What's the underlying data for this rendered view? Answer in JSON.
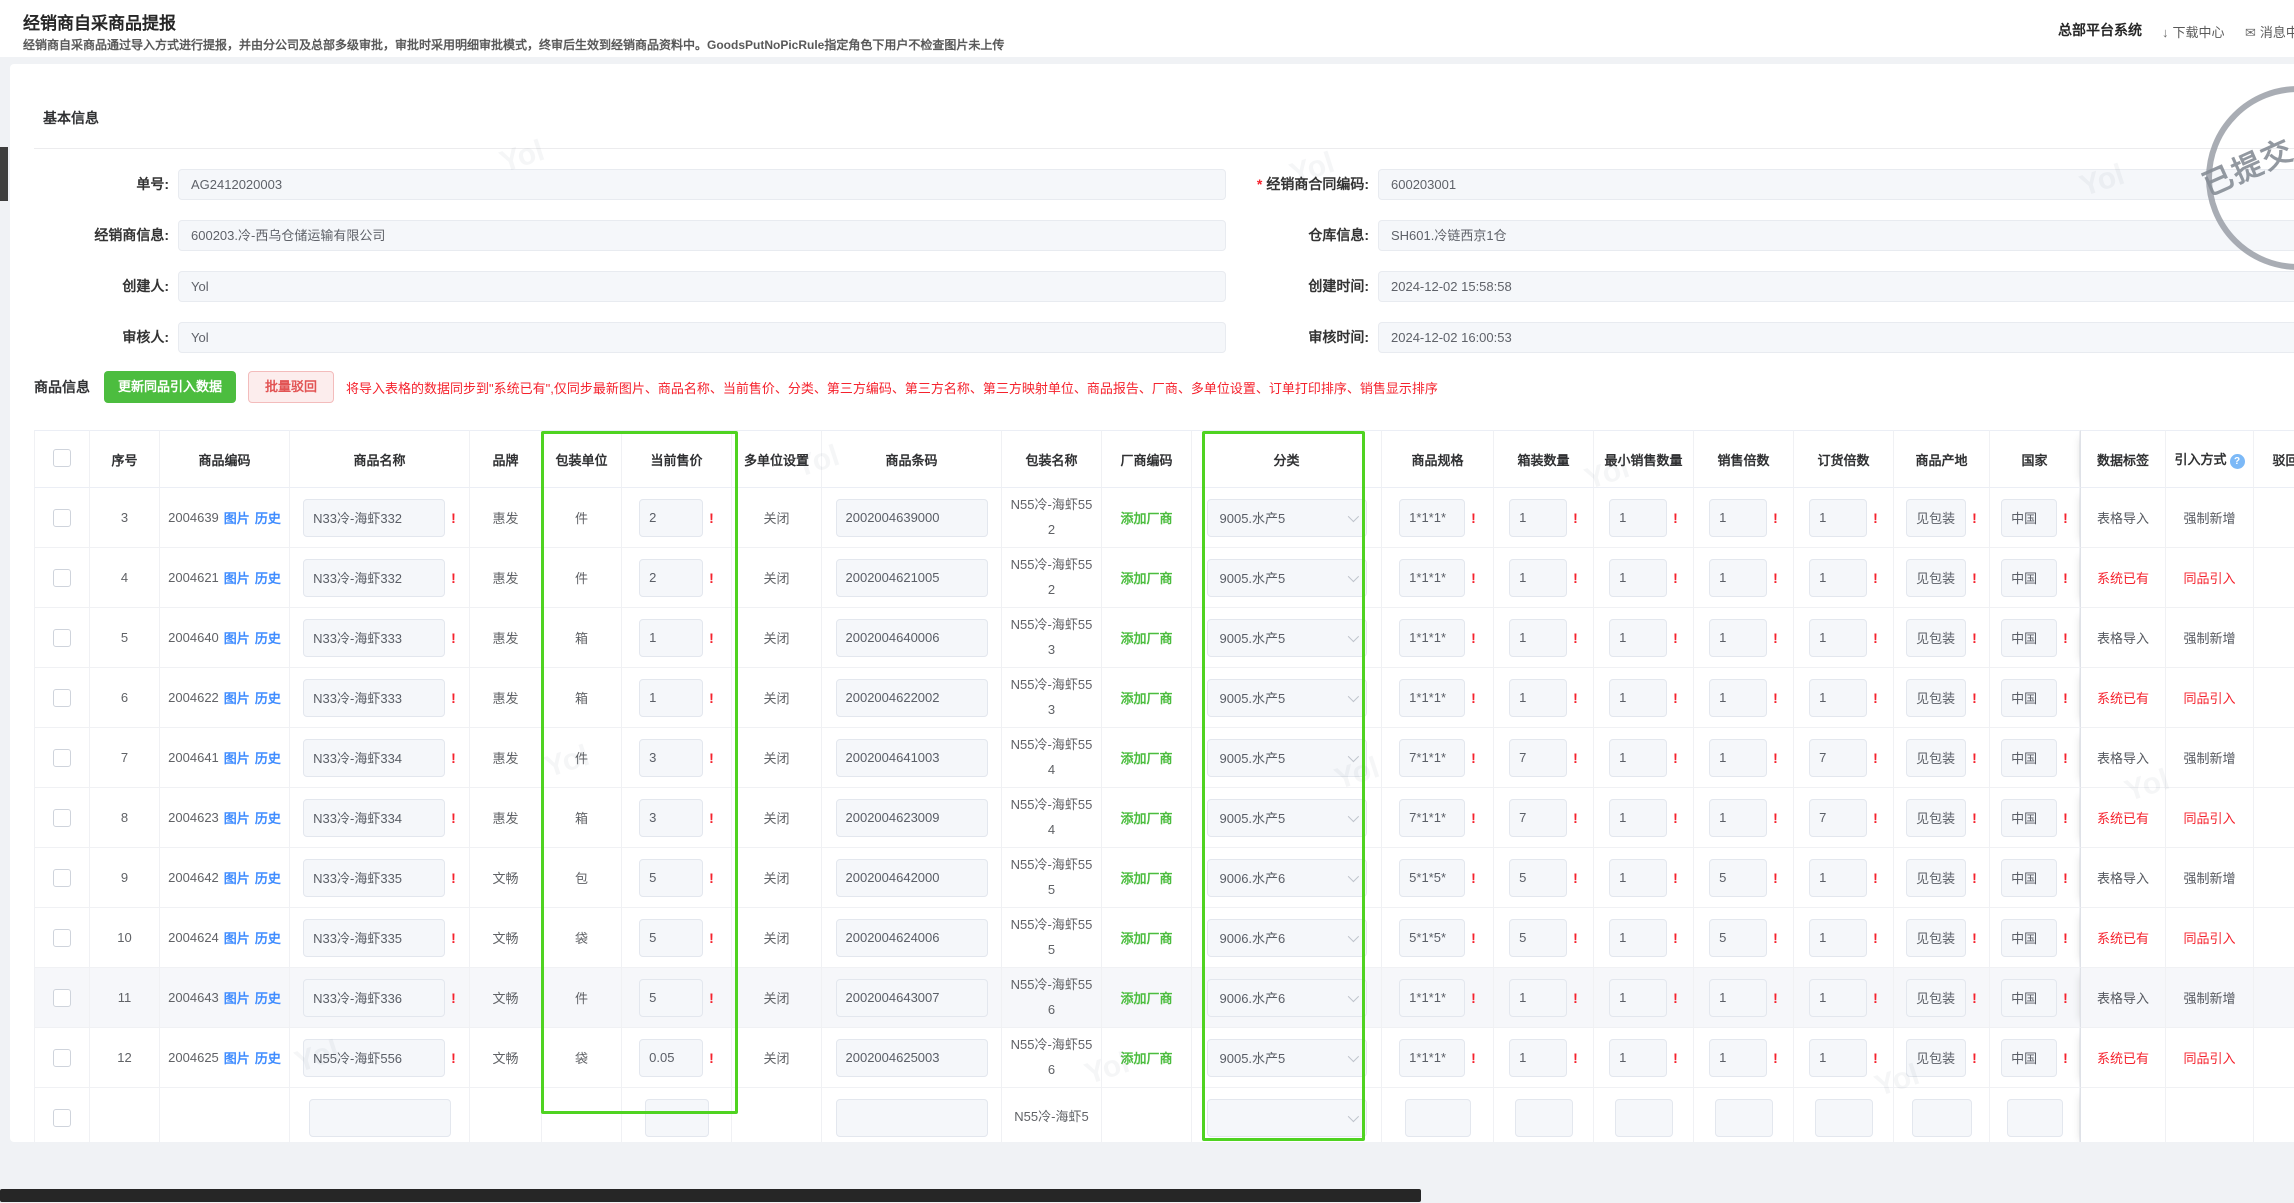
{
  "topbar": {
    "title": "经销商自采商品提报",
    "subtitle": "经销商自采商品通过导入方式进行提报，并由分公司及总部多级审批，审批时采用明细审批模式，终审后生效到经销商品资料中。GoodsPutNoPicRule指定角色下用户不检查图片未上传",
    "system_name": "总部平台系统",
    "download_icon": "↓",
    "download_center": "下载中心",
    "message_icon": "✉",
    "message_center": "消息中心"
  },
  "stamp": {
    "text": "已提交"
  },
  "watermark": "Yol",
  "colors": {
    "accent_green": "#4cbd3f",
    "highlight_green": "#4fd321",
    "danger_red": "#f5222d",
    "link_blue": "#3f8cff"
  },
  "basic": {
    "section_title": "基本信息",
    "required_mark": "*",
    "left": [
      {
        "label": "单号:",
        "value": "AG2412020003"
      },
      {
        "label": "经销商信息:",
        "value": "600203.冷-西乌仓储运输有限公司"
      },
      {
        "label": "创建人:",
        "value": "Yol"
      },
      {
        "label": "审核人:",
        "value": "Yol"
      }
    ],
    "right": [
      {
        "label": "经销商合同编码:",
        "value": "600203001",
        "required": true
      },
      {
        "label": "仓库信息:",
        "value": "SH601.冷链西京1仓"
      },
      {
        "label": "创建时间:",
        "value": "2024-12-02 15:58:58"
      },
      {
        "label": "审核时间:",
        "value": "2024-12-02 16:00:53"
      }
    ]
  },
  "toolbar": {
    "section_title": "商品信息",
    "update_button": "更新同品引入数据",
    "reject_button": "批量驳回",
    "notice": "将导入表格的数据同步到\"系统已有\",仅同步最新图片、商品名称、当前售价、分类、第三方编码、第三方名称、第三方映射单位、商品报告、厂商、多单位设置、订单打印排序、销售显示排序"
  },
  "table": {
    "bang": "!",
    "help_icon": "?",
    "columns": [
      "",
      "序号",
      "商品编码",
      "商品名称",
      "品牌",
      "包装单位",
      "当前售价",
      "多单位设置",
      "商品条码",
      "包装名称",
      "厂商编码",
      "分类",
      "商品规格",
      "箱装数量",
      "最小销售数量",
      "销售倍数",
      "订货倍数",
      "商品产地",
      "国家",
      "数据标签",
      "引入方式",
      "驳回原因"
    ],
    "links": {
      "image": "图片",
      "history": "历史",
      "add_vendor": "添加厂商"
    },
    "rows": [
      {
        "seq": "3",
        "code": "2004639",
        "name": "N33冷-海虾332",
        "brand": "惠发",
        "unit": "件",
        "price": "2",
        "multi": "关闭",
        "barcode": "2002004639000",
        "pkg": "N55冷-海虾552",
        "cat": "9005.水产5",
        "spec": "1*1*1*",
        "box": "1",
        "min": "1",
        "sale": "1",
        "order": "1",
        "origin": "见包装",
        "country": "中国",
        "tag": "表格导入",
        "mode": "强制新增",
        "tag_red": false
      },
      {
        "seq": "4",
        "code": "2004621",
        "name": "N33冷-海虾332",
        "brand": "惠发",
        "unit": "件",
        "price": "2",
        "multi": "关闭",
        "barcode": "2002004621005",
        "pkg": "N55冷-海虾552",
        "cat": "9005.水产5",
        "spec": "1*1*1*",
        "box": "1",
        "min": "1",
        "sale": "1",
        "order": "1",
        "origin": "见包装",
        "country": "中国",
        "tag": "系统已有",
        "mode": "同品引入",
        "tag_red": true
      },
      {
        "seq": "5",
        "code": "2004640",
        "name": "N33冷-海虾333",
        "brand": "惠发",
        "unit": "箱",
        "price": "1",
        "multi": "关闭",
        "barcode": "2002004640006",
        "pkg": "N55冷-海虾553",
        "cat": "9005.水产5",
        "spec": "1*1*1*",
        "box": "1",
        "min": "1",
        "sale": "1",
        "order": "1",
        "origin": "见包装",
        "country": "中国",
        "tag": "表格导入",
        "mode": "强制新增",
        "tag_red": false
      },
      {
        "seq": "6",
        "code": "2004622",
        "name": "N33冷-海虾333",
        "brand": "惠发",
        "unit": "箱",
        "price": "1",
        "multi": "关闭",
        "barcode": "2002004622002",
        "pkg": "N55冷-海虾553",
        "cat": "9005.水产5",
        "spec": "1*1*1*",
        "box": "1",
        "min": "1",
        "sale": "1",
        "order": "1",
        "origin": "见包装",
        "country": "中国",
        "tag": "系统已有",
        "mode": "同品引入",
        "tag_red": true
      },
      {
        "seq": "7",
        "code": "2004641",
        "name": "N33冷-海虾334",
        "brand": "惠发",
        "unit": "件",
        "price": "3",
        "multi": "关闭",
        "barcode": "2002004641003",
        "pkg": "N55冷-海虾554",
        "cat": "9005.水产5",
        "spec": "7*1*1*",
        "box": "7",
        "min": "1",
        "sale": "1",
        "order": "7",
        "origin": "见包装",
        "country": "中国",
        "tag": "表格导入",
        "mode": "强制新增",
        "tag_red": false
      },
      {
        "seq": "8",
        "code": "2004623",
        "name": "N33冷-海虾334",
        "brand": "惠发",
        "unit": "箱",
        "price": "3",
        "multi": "关闭",
        "barcode": "2002004623009",
        "pkg": "N55冷-海虾554",
        "cat": "9005.水产5",
        "spec": "7*1*1*",
        "box": "7",
        "min": "1",
        "sale": "1",
        "order": "7",
        "origin": "见包装",
        "country": "中国",
        "tag": "系统已有",
        "mode": "同品引入",
        "tag_red": true
      },
      {
        "seq": "9",
        "code": "2004642",
        "name": "N33冷-海虾335",
        "brand": "文畅",
        "unit": "包",
        "price": "5",
        "multi": "关闭",
        "barcode": "2002004642000",
        "pkg": "N55冷-海虾555",
        "cat": "9006.水产6",
        "spec": "5*1*5*",
        "box": "5",
        "min": "1",
        "sale": "5",
        "order": "1",
        "origin": "见包装",
        "country": "中国",
        "tag": "表格导入",
        "mode": "强制新增",
        "tag_red": false
      },
      {
        "seq": "10",
        "code": "2004624",
        "name": "N33冷-海虾335",
        "brand": "文畅",
        "unit": "袋",
        "price": "5",
        "multi": "关闭",
        "barcode": "2002004624006",
        "pkg": "N55冷-海虾555",
        "cat": "9006.水产6",
        "spec": "5*1*5*",
        "box": "5",
        "min": "1",
        "sale": "5",
        "order": "1",
        "origin": "见包装",
        "country": "中国",
        "tag": "系统已有",
        "mode": "同品引入",
        "tag_red": true
      },
      {
        "seq": "11",
        "code": "2004643",
        "name": "N33冷-海虾336",
        "brand": "文畅",
        "unit": "件",
        "price": "5",
        "multi": "关闭",
        "barcode": "2002004643007",
        "pkg": "N55冷-海虾556",
        "cat": "9006.水产6",
        "spec": "1*1*1*",
        "box": "1",
        "min": "1",
        "sale": "1",
        "order": "1",
        "origin": "见包装",
        "country": "中国",
        "tag": "表格导入",
        "mode": "强制新增",
        "tag_red": false,
        "shaded": true
      },
      {
        "seq": "12",
        "code": "2004625",
        "name": "N55冷-海虾556",
        "brand": "文畅",
        "unit": "袋",
        "price": "0.05",
        "multi": "关闭",
        "barcode": "2002004625003",
        "pkg": "N55冷-海虾556",
        "cat": "9005.水产5",
        "spec": "1*1*1*",
        "box": "1",
        "min": "1",
        "sale": "1",
        "order": "1",
        "origin": "见包装",
        "country": "中国",
        "tag": "系统已有",
        "mode": "同品引入",
        "tag_red": true
      },
      {
        "seq": "",
        "code": "",
        "name": "",
        "brand": "",
        "unit": "",
        "price": "",
        "multi": "",
        "barcode": "",
        "pkg": "N55冷-海虾5",
        "cat": "",
        "spec": "",
        "box": "",
        "min": "",
        "sale": "",
        "order": "",
        "origin": "",
        "country": "",
        "tag": "",
        "mode": "",
        "tag_red": false,
        "partial": true
      }
    ]
  }
}
